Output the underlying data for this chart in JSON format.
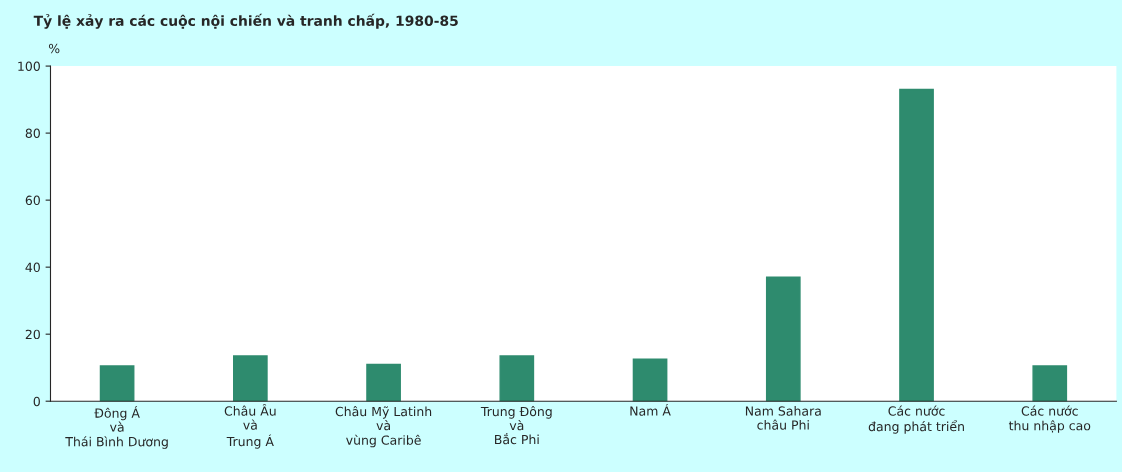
{
  "chart_data": {
    "type": "bar",
    "title": "Tỷ lệ xảy ra các cuộc nội chiến và tranh chấp, 1980-85",
    "ylabel": "%",
    "categories": [
      "Đông Á\nvà\nThái Bình Dương",
      "Châu Âu\nvà\nTrung Á",
      "Châu Mỹ Latinh\nvà\nvùng Caribê",
      "Trung Đông\nvà\nBắc Phi",
      "Nam Á",
      "Nam Sahara\nchâu Phi",
      "Các nước\nđang phát triển",
      "Các nước\nthu nhập cao"
    ],
    "values": [
      10.5,
      13.5,
      11,
      13.5,
      12.5,
      37,
      93,
      10.5
    ],
    "color": "#2e8b6e",
    "ylim": [
      0,
      100
    ],
    "yticks": [
      0,
      20,
      40,
      60,
      80,
      100
    ],
    "grid": false,
    "legend": false
  }
}
